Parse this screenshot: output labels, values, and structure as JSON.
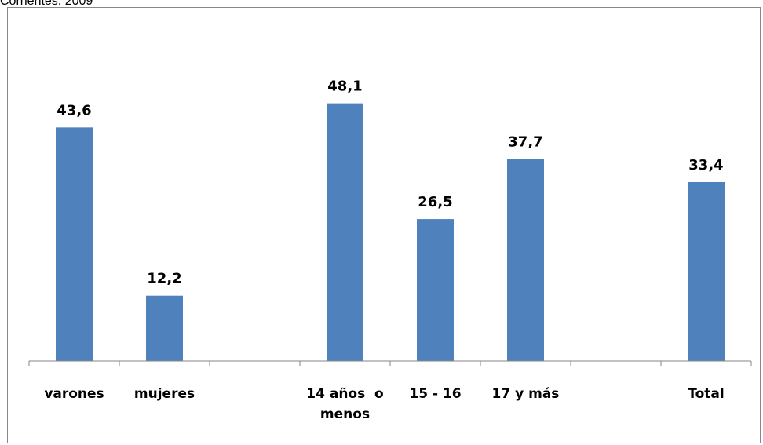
{
  "caption": "Corrientes. 2009",
  "chart_data": {
    "type": "bar",
    "categories": [
      [
        "varones"
      ],
      [
        "mujeres"
      ],
      [],
      [
        "14 años  o",
        "menos"
      ],
      [
        "15 - 16"
      ],
      [
        "17 y más"
      ],
      [],
      [
        "Total"
      ]
    ],
    "values": [
      43.6,
      12.2,
      null,
      48.1,
      26.5,
      37.7,
      null,
      33.4
    ],
    "value_labels": [
      "43,6",
      "12,2",
      "",
      "48,1",
      "26,5",
      "37,7",
      "",
      "33,4"
    ],
    "ylim": [
      0,
      52
    ],
    "bar_color": "#4f81bd",
    "grid": false,
    "legend": "none"
  }
}
